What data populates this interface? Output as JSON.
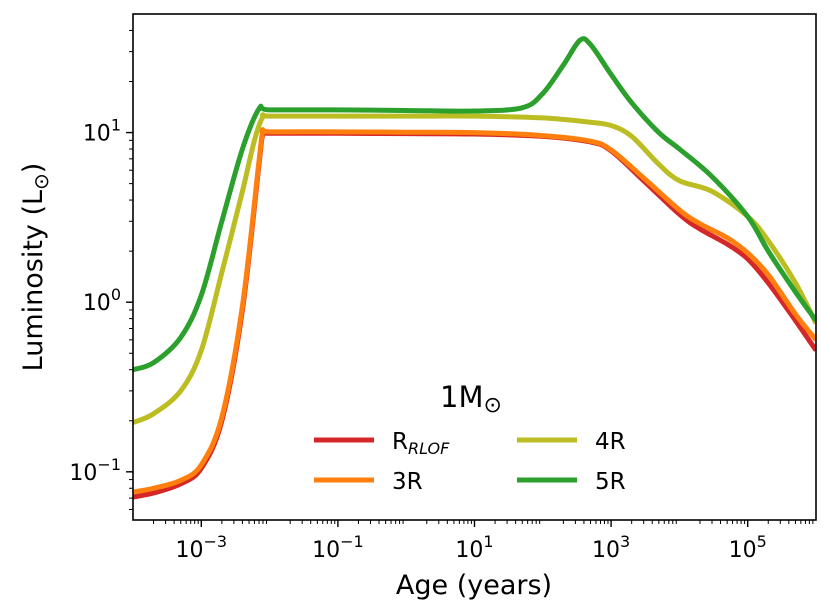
{
  "chart_data": {
    "type": "line",
    "xscale": "log",
    "yscale": "log",
    "xlabel": "Age (years)",
    "ylabel": "Luminosity (L",
    "ylabel_symbol": "⊙",
    "ylabel_close": ")",
    "xlim": [
      0.0001,
      1000000
    ],
    "ylim": [
      0.052,
      50
    ],
    "x_ticks": [
      {
        "value": 0.001,
        "base": "10",
        "exp": "−3"
      },
      {
        "value": 0.1,
        "base": "10",
        "exp": "−1"
      },
      {
        "value": 10,
        "base": "10",
        "exp": "1"
      },
      {
        "value": 1000,
        "base": "10",
        "exp": "3"
      },
      {
        "value": 100000,
        "base": "10",
        "exp": "5"
      }
    ],
    "y_ticks": [
      {
        "value": 0.1,
        "base": "10",
        "exp": "−1"
      },
      {
        "value": 1,
        "base": "10",
        "exp": "0"
      },
      {
        "value": 10,
        "base": "10",
        "exp": "1"
      }
    ],
    "legend": {
      "title": "1M",
      "title_symbol": "⊙",
      "placement": "lower-center",
      "ncol": 2
    },
    "series": [
      {
        "name": "R",
        "name_sub": "RLOF",
        "color": "#d62728",
        "points": [
          [
            0.0001,
            0.071
          ],
          [
            0.0002,
            0.075
          ],
          [
            0.0005,
            0.085
          ],
          [
            0.001,
            0.105
          ],
          [
            0.002,
            0.2
          ],
          [
            0.004,
            0.9
          ],
          [
            0.007,
            6.5
          ],
          [
            0.008,
            9.8
          ],
          [
            0.01,
            9.9
          ],
          [
            0.1,
            9.9
          ],
          [
            1,
            9.85
          ],
          [
            10,
            9.8
          ],
          [
            100,
            9.5
          ],
          [
            500,
            8.8
          ],
          [
            1000,
            7.8
          ],
          [
            3000,
            5.2
          ],
          [
            10000,
            3.3
          ],
          [
            20000,
            2.7
          ],
          [
            50000,
            2.2
          ],
          [
            100000,
            1.8
          ],
          [
            200000,
            1.3
          ],
          [
            500000,
            0.78
          ],
          [
            1000000,
            0.52
          ]
        ]
      },
      {
        "name": "3R",
        "color": "#ff7f0e",
        "points": [
          [
            0.0001,
            0.076
          ],
          [
            0.0002,
            0.08
          ],
          [
            0.0005,
            0.089
          ],
          [
            0.001,
            0.11
          ],
          [
            0.002,
            0.21
          ],
          [
            0.004,
            0.95
          ],
          [
            0.007,
            6.8
          ],
          [
            0.008,
            10.1
          ],
          [
            0.01,
            10.1
          ],
          [
            0.1,
            10.1
          ],
          [
            1,
            10.05
          ],
          [
            10,
            10.0
          ],
          [
            100,
            9.6
          ],
          [
            500,
            8.9
          ],
          [
            1000,
            7.9
          ],
          [
            3000,
            5.4
          ],
          [
            10000,
            3.5
          ],
          [
            20000,
            2.9
          ],
          [
            50000,
            2.4
          ],
          [
            100000,
            1.95
          ],
          [
            200000,
            1.45
          ],
          [
            500000,
            0.85
          ],
          [
            1000000,
            0.6
          ]
        ]
      },
      {
        "name": "4R",
        "color": "#bcbd22",
        "points": [
          [
            0.0001,
            0.195
          ],
          [
            0.0002,
            0.22
          ],
          [
            0.0005,
            0.3
          ],
          [
            0.001,
            0.52
          ],
          [
            0.002,
            1.5
          ],
          [
            0.004,
            4.5
          ],
          [
            0.006,
            9
          ],
          [
            0.008,
            12.4
          ],
          [
            0.01,
            12.5
          ],
          [
            0.1,
            12.5
          ],
          [
            1,
            12.5
          ],
          [
            10,
            12.5
          ],
          [
            100,
            12.2
          ],
          [
            500,
            11.5
          ],
          [
            1000,
            11
          ],
          [
            2000,
            9.5
          ],
          [
            5000,
            6.5
          ],
          [
            10000,
            5.2
          ],
          [
            30000,
            4.5
          ],
          [
            100000,
            3.2
          ],
          [
            200000,
            2.3
          ],
          [
            500000,
            1.3
          ],
          [
            1000000,
            0.75
          ]
        ]
      },
      {
        "name": "5R",
        "color": "#2ca02c",
        "points": [
          [
            0.0001,
            0.4
          ],
          [
            0.0002,
            0.44
          ],
          [
            0.0005,
            0.62
          ],
          [
            0.001,
            1.1
          ],
          [
            0.002,
            3
          ],
          [
            0.004,
            8
          ],
          [
            0.007,
            13.8
          ],
          [
            0.01,
            13.6
          ],
          [
            0.1,
            13.6
          ],
          [
            1,
            13.5
          ],
          [
            10,
            13.4
          ],
          [
            50,
            14
          ],
          [
            100,
            17
          ],
          [
            200,
            25
          ],
          [
            350,
            35
          ],
          [
            500,
            33
          ],
          [
            1000,
            22
          ],
          [
            2000,
            15
          ],
          [
            5000,
            10
          ],
          [
            10000,
            8
          ],
          [
            30000,
            5.5
          ],
          [
            100000,
            3.2
          ],
          [
            200000,
            2
          ],
          [
            500000,
            1.15
          ],
          [
            1000000,
            0.78
          ]
        ]
      }
    ]
  }
}
